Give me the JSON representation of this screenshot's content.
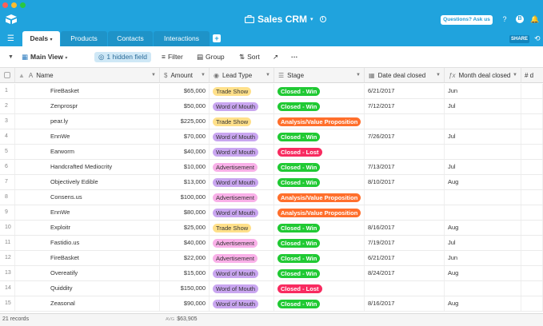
{
  "window": {
    "title": "Sales CRM"
  },
  "header": {
    "questions_label": "Questions? Ask us",
    "help_icon": "?",
    "avatar_letter": "B"
  },
  "tabs": [
    {
      "label": "Deals"
    },
    {
      "label": "Products"
    },
    {
      "label": "Contacts"
    },
    {
      "label": "Interactions"
    }
  ],
  "share_label": "SHARE",
  "toolbar": {
    "view_name": "Main View",
    "hidden_field": "1 hidden field",
    "filter": "Filter",
    "group": "Group",
    "sort": "Sort",
    "more": "···"
  },
  "columns": [
    "Name",
    "Amount",
    "Lead Type",
    "Stage",
    "Date deal closed",
    "Month deal closed",
    "# d"
  ],
  "colors": {
    "accent": "#20a3dd",
    "lead": {
      "Trade Show": "#ffe08a",
      "Word of Mouth": "#c9a6f0",
      "Advertisement": "#f9b0e8"
    },
    "stage": {
      "Closed - Win": "#20c933",
      "Analysis/Value Proposition": "#ff6f2c",
      "Closed - Lost": "#f82b60"
    }
  },
  "rows": [
    {
      "n": "1",
      "name": "FireBasket",
      "amount": "$65,000",
      "lead": "Trade Show",
      "stage": "Closed - Win",
      "date": "6/21/2017",
      "month": "Jun"
    },
    {
      "n": "2",
      "name": "Zenprospr",
      "amount": "$50,000",
      "lead": "Word of Mouth",
      "stage": "Closed - Win",
      "date": "7/12/2017",
      "month": "Jul"
    },
    {
      "n": "3",
      "name": "pear.ly",
      "amount": "$225,000",
      "lead": "Trade Show",
      "stage": "Analysis/Value Proposition",
      "date": "",
      "month": ""
    },
    {
      "n": "4",
      "name": "EnnWe",
      "amount": "$70,000",
      "lead": "Word of Mouth",
      "stage": "Closed - Win",
      "date": "7/26/2017",
      "month": "Jul"
    },
    {
      "n": "5",
      "name": "Earworm",
      "amount": "$40,000",
      "lead": "Word of Mouth",
      "stage": "Closed - Lost",
      "date": "",
      "month": ""
    },
    {
      "n": "6",
      "name": "Handcrafted Mediocrity",
      "amount": "$10,000",
      "lead": "Advertisement",
      "stage": "Closed - Win",
      "date": "7/13/2017",
      "month": "Jul"
    },
    {
      "n": "7",
      "name": "Objectively Edible",
      "amount": "$13,000",
      "lead": "Word of Mouth",
      "stage": "Closed - Win",
      "date": "8/10/2017",
      "month": "Aug"
    },
    {
      "n": "8",
      "name": "Consens.us",
      "amount": "$100,000",
      "lead": "Advertisement",
      "stage": "Analysis/Value Proposition",
      "date": "",
      "month": ""
    },
    {
      "n": "9",
      "name": "EnnWe",
      "amount": "$80,000",
      "lead": "Word of Mouth",
      "stage": "Analysis/Value Proposition",
      "date": "",
      "month": ""
    },
    {
      "n": "10",
      "name": "Exploitr",
      "amount": "$25,000",
      "lead": "Trade Show",
      "stage": "Closed - Win",
      "date": "8/16/2017",
      "month": "Aug"
    },
    {
      "n": "11",
      "name": "Fastidio.us",
      "amount": "$40,000",
      "lead": "Advertisement",
      "stage": "Closed - Win",
      "date": "7/19/2017",
      "month": "Jul"
    },
    {
      "n": "12",
      "name": "FireBasket",
      "amount": "$22,000",
      "lead": "Advertisement",
      "stage": "Closed - Win",
      "date": "6/21/2017",
      "month": "Jun"
    },
    {
      "n": "13",
      "name": "Overeatify",
      "amount": "$15,000",
      "lead": "Word of Mouth",
      "stage": "Closed - Win",
      "date": "8/24/2017",
      "month": "Aug"
    },
    {
      "n": "14",
      "name": "Quiddity",
      "amount": "$150,000",
      "lead": "Word of Mouth",
      "stage": "Closed - Lost",
      "date": "",
      "month": ""
    },
    {
      "n": "15",
      "name": "Zeasonal",
      "amount": "$90,000",
      "lead": "Word of Mouth",
      "stage": "Closed - Win",
      "date": "8/16/2017",
      "month": "Aug"
    }
  ],
  "footer": {
    "records": "21 records",
    "avg_label": "AVG",
    "avg_value": "$63,905"
  }
}
